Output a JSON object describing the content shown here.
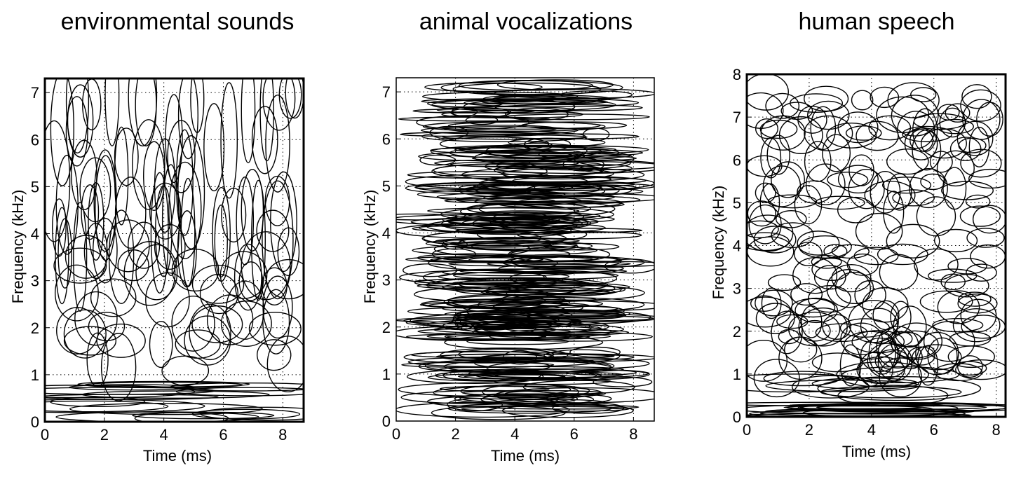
{
  "chart_data": [
    {
      "type": "scatter",
      "title": "environmental sounds",
      "xlabel": "Time (ms)",
      "ylabel": "Frequency (kHz)",
      "xlim": [
        0,
        8.7
      ],
      "ylim": [
        0,
        7.3
      ],
      "xticks": [
        "0",
        "2",
        "4",
        "6",
        "8"
      ],
      "yticks": [
        "0",
        "1",
        "2",
        "3",
        "4",
        "5",
        "6",
        "7"
      ],
      "grid": true,
      "style": "environmental",
      "description_marks": "time-frequency tiling ellipses"
    },
    {
      "type": "scatter",
      "title": "animal vocalizations",
      "xlabel": "Time (ms)",
      "ylabel": "Frequency (kHz)",
      "xlim": [
        0,
        8.7
      ],
      "ylim": [
        0,
        7.3
      ],
      "xticks": [
        "0",
        "2",
        "4",
        "6",
        "8"
      ],
      "yticks": [
        "0",
        "1",
        "2",
        "3",
        "4",
        "5",
        "6",
        "7"
      ],
      "grid": true,
      "style": "animal",
      "description_marks": "time-frequency tiling ellipses"
    },
    {
      "type": "scatter",
      "title": "human speech",
      "xlabel": "Time (ms)",
      "ylabel": "Frequency (kHz)",
      "xlim": [
        0,
        8.3
      ],
      "ylim": [
        0,
        8
      ],
      "xticks": [
        "0",
        "2",
        "4",
        "6",
        "8"
      ],
      "yticks": [
        "0",
        "1",
        "2",
        "3",
        "4",
        "5",
        "6",
        "7",
        "8"
      ],
      "grid": true,
      "style": "speech",
      "description_marks": "time-frequency tiling ellipses"
    }
  ]
}
